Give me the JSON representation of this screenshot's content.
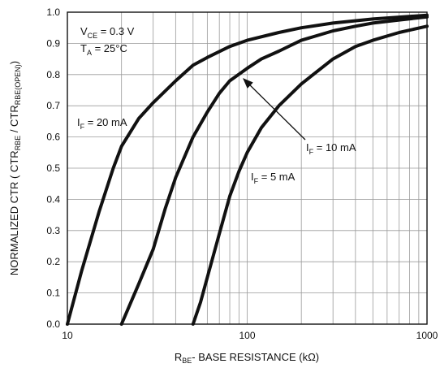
{
  "chart_data": {
    "type": "line",
    "x_scale": "log",
    "xlim": [
      10,
      1000
    ],
    "ylim": [
      0,
      1
    ],
    "grid": true,
    "x_tick_labels": [
      "10",
      "100",
      "1000"
    ],
    "y_tick_labels": [
      "0.0",
      "0.1",
      "0.2",
      "0.3",
      "0.4",
      "0.5",
      "0.6",
      "0.7",
      "0.8",
      "0.9",
      "1.0"
    ],
    "xlabel": {
      "main": "R",
      "sub": "BE",
      "rest": "- BASE RESISTANCE (kΩ)"
    },
    "ylabel": {
      "p1": "NORMALIZED CTR ( CTR",
      "s1": "RBE",
      "p2": " / CTR",
      "s2": "RBE(OPEN)",
      "p3": ")"
    },
    "conditions": [
      {
        "main": "V",
        "sub": "CE",
        "rest": " = 0.3 V"
      },
      {
        "main": "T",
        "sub": "A",
        "rest": " = 25°C"
      }
    ],
    "series": [
      {
        "name": {
          "main": "I",
          "sub": "F",
          "rest": " = 20 mA"
        },
        "x": [
          10,
          12,
          15,
          18,
          20,
          25,
          30,
          40,
          50,
          60,
          80,
          100,
          150,
          200,
          300,
          500,
          700,
          1000
        ],
        "y": [
          0.0,
          0.17,
          0.36,
          0.5,
          0.57,
          0.66,
          0.71,
          0.78,
          0.83,
          0.855,
          0.89,
          0.91,
          0.935,
          0.95,
          0.965,
          0.978,
          0.984,
          0.99
        ]
      },
      {
        "name": {
          "main": "I",
          "sub": "F",
          "rest": " = 10 mA"
        },
        "x": [
          20,
          25,
          30,
          35,
          40,
          50,
          60,
          70,
          80,
          100,
          120,
          150,
          200,
          300,
          400,
          500,
          700,
          1000
        ],
        "y": [
          0.0,
          0.13,
          0.24,
          0.37,
          0.47,
          0.6,
          0.68,
          0.74,
          0.78,
          0.82,
          0.85,
          0.875,
          0.91,
          0.94,
          0.955,
          0.965,
          0.975,
          0.985
        ]
      },
      {
        "name": {
          "main": "I",
          "sub": "F",
          "rest": " = 5 mA"
        },
        "x": [
          50,
          55,
          60,
          70,
          80,
          90,
          100,
          120,
          150,
          200,
          300,
          400,
          500,
          700,
          1000
        ],
        "y": [
          0.0,
          0.07,
          0.15,
          0.29,
          0.41,
          0.49,
          0.55,
          0.63,
          0.7,
          0.77,
          0.85,
          0.89,
          0.91,
          0.935,
          0.955
        ]
      }
    ]
  }
}
